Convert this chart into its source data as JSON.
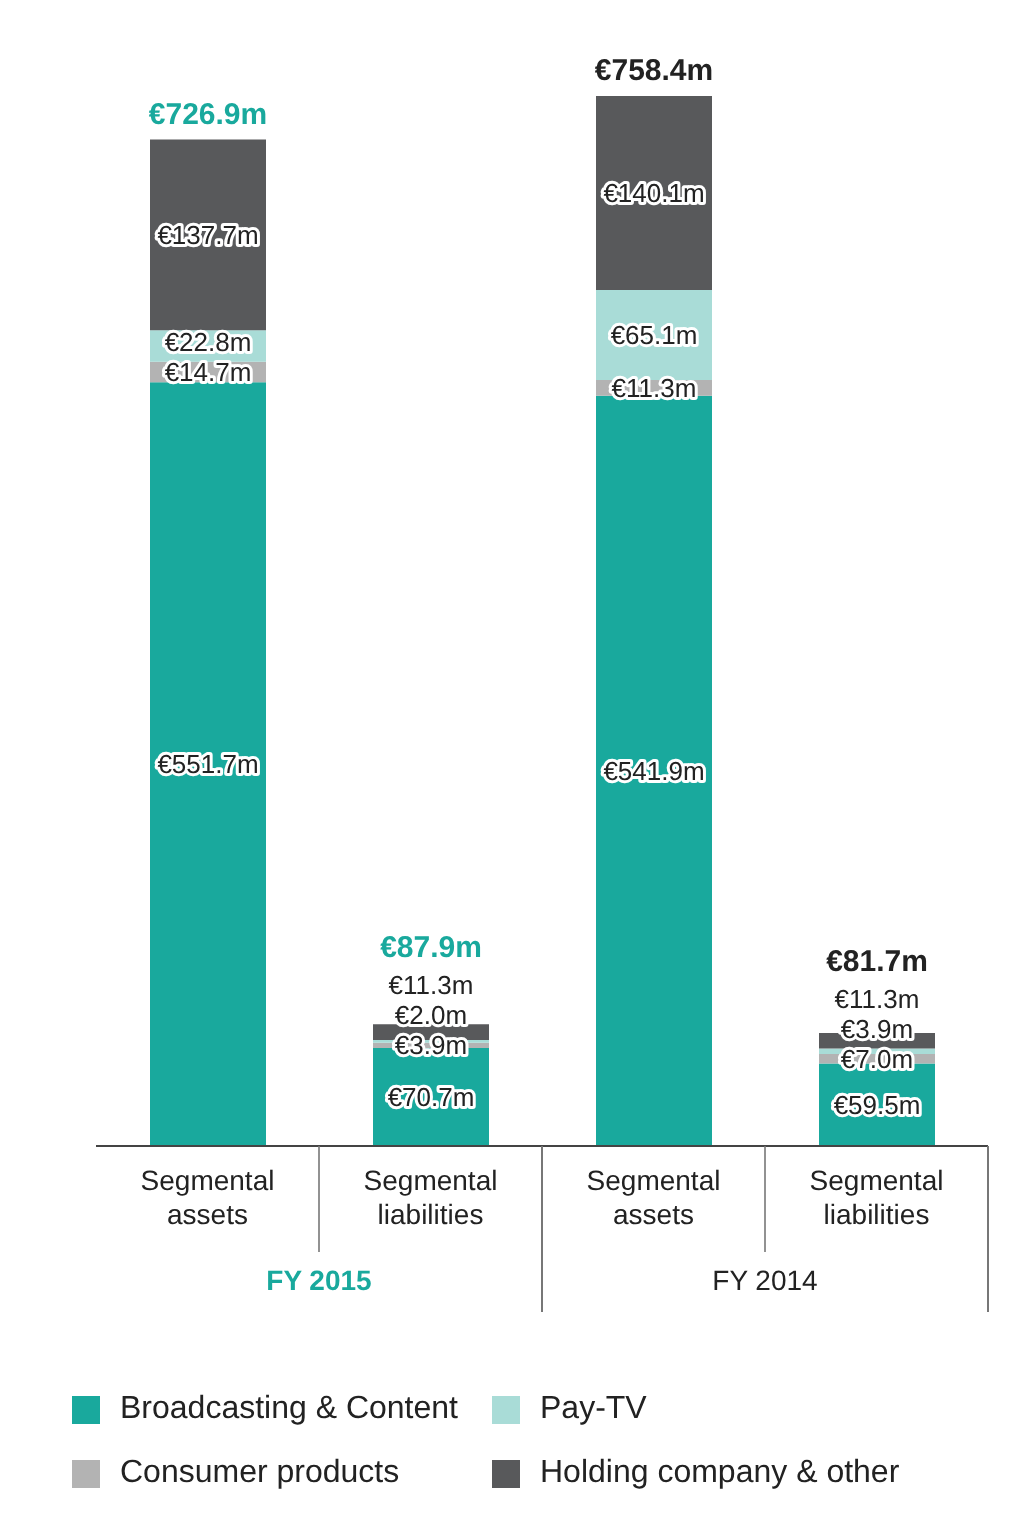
{
  "chart_data": {
    "type": "bar",
    "stacked": true,
    "categories": [
      "Segmental assets",
      "Segmental liabilities",
      "Segmental assets",
      "Segmental liabilities"
    ],
    "series": [
      {
        "name": "Broadcasting & Content",
        "color": "#19a99d",
        "values": [
          551.7,
          70.7,
          541.9,
          59.5
        ],
        "value_labels": [
          "€551.7m",
          "€70.7m",
          "€541.9m",
          "€59.5m"
        ]
      },
      {
        "name": "Consumer products",
        "color": "#b3b3b3",
        "values": [
          14.7,
          3.9,
          11.3,
          7.0
        ],
        "value_labels": [
          "€14.7m",
          "€3.9m",
          "€11.3m",
          "€7.0m"
        ]
      },
      {
        "name": "Pay-TV",
        "color": "#a9dcd7",
        "values": [
          22.8,
          2.0,
          65.1,
          3.9
        ],
        "value_labels": [
          "€22.8m",
          "€2.0m",
          "€65.1m",
          "€3.9m"
        ]
      },
      {
        "name": "Holding company & other",
        "color": "#58595b",
        "values": [
          137.7,
          11.3,
          140.1,
          11.3
        ],
        "value_labels": [
          "€137.7m",
          "€11.3m",
          "€140.1m",
          "€11.3m"
        ]
      }
    ],
    "totals": [
      "€726.9m",
      "€87.9m",
      "€758.4m",
      "€81.7m"
    ],
    "annotations": [
      "FY 2015",
      "FY 2014"
    ],
    "legend": "bottom",
    "grid": false
  }
}
